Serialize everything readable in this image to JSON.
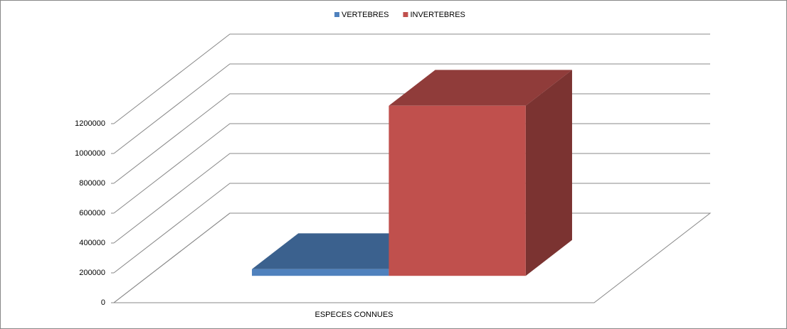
{
  "chart_data": {
    "type": "bar3d",
    "categories": [
      "ESPECES CONNUES"
    ],
    "series": [
      {
        "name": "VERTEBRES",
        "color": "#4f81bd",
        "values": [
          45000
        ]
      },
      {
        "name": "INVERTEBRES",
        "color": "#c0504d",
        "values": [
          1140000
        ]
      }
    ],
    "ylim": [
      0,
      1200000
    ],
    "yticks": [
      0,
      200000,
      400000,
      600000,
      800000,
      1000000,
      1200000
    ],
    "grid": true,
    "legend": "top"
  }
}
